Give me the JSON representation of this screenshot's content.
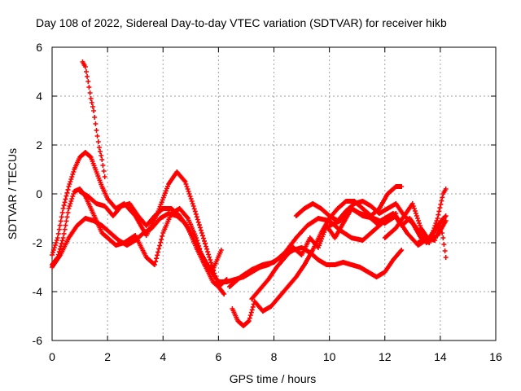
{
  "chart_data": {
    "type": "scatter",
    "title": "Day 108 of 2022, Sidereal Day-to-day VTEC variation (SDTVAR) for receiver hikb",
    "xlabel": "GPS time / hours",
    "ylabel": "SDTVAR / TECUs",
    "xlim": [
      0,
      16
    ],
    "ylim": [
      -6,
      6
    ],
    "xticks": [
      0,
      2,
      4,
      6,
      8,
      10,
      12,
      14,
      16
    ],
    "yticks": [
      -6,
      -4,
      -2,
      0,
      2,
      4,
      6
    ],
    "grid": true,
    "marker": "+",
    "color": "#ff0000",
    "series": [
      {
        "name": "track-1",
        "x": [
          0.0,
          0.2,
          0.4,
          0.6,
          0.8,
          1.0,
          1.2,
          1.4,
          1.6,
          1.8,
          2.0,
          2.3,
          2.6,
          3.0,
          3.4,
          3.8,
          4.2,
          4.5,
          4.8,
          5.1,
          5.4,
          5.7,
          6.0,
          6.2
        ],
        "values": [
          -2.5,
          -1.8,
          -0.6,
          0.3,
          1.0,
          1.5,
          1.7,
          1.5,
          0.9,
          0.3,
          -0.2,
          -0.6,
          -0.4,
          -0.9,
          -1.7,
          -0.8,
          0.4,
          0.9,
          0.5,
          -0.5,
          -1.6,
          -2.7,
          -3.8,
          -4.1
        ]
      },
      {
        "name": "track-2",
        "x": [
          1.1,
          1.2,
          1.3,
          1.4,
          1.5,
          1.6,
          1.7,
          1.8,
          1.9
        ],
        "values": [
          5.4,
          5.2,
          4.6,
          3.9,
          3.4,
          2.6,
          1.9,
          1.4,
          0.7
        ]
      },
      {
        "name": "track-3",
        "x": [
          0.0,
          0.2,
          0.4,
          0.6,
          0.8,
          1.0,
          1.2,
          1.4,
          1.6,
          1.8,
          2.0,
          2.3,
          2.6,
          3.0,
          3.4,
          3.7,
          4.0,
          4.3,
          4.6,
          4.9,
          5.2,
          5.5,
          5.8,
          6.0,
          6.3
        ],
        "values": [
          -2.9,
          -2.6,
          -1.8,
          -0.6,
          0.1,
          0.2,
          -0.1,
          -0.6,
          -1.1,
          -1.6,
          -1.8,
          -2.1,
          -2.0,
          -1.7,
          -2.6,
          -2.9,
          -1.6,
          -0.8,
          -0.6,
          -1.0,
          -1.8,
          -2.9,
          -3.6,
          -3.8,
          -3.5
        ]
      },
      {
        "name": "track-4",
        "x": [
          0.0,
          0.3,
          0.6,
          0.9,
          1.2,
          1.5,
          1.8,
          2.1,
          2.4,
          2.7,
          3.0,
          3.3,
          3.6,
          3.9,
          4.2,
          4.5,
          4.8,
          5.1,
          5.4,
          5.7,
          6.0,
          6.3,
          6.6,
          6.9,
          7.2,
          7.5,
          7.8,
          8.1,
          8.4,
          8.7,
          9.0,
          9.3,
          9.6,
          9.9,
          10.2,
          10.5,
          10.8,
          11.1,
          11.4,
          11.7,
          12.0,
          12.3,
          12.6
        ],
        "values": [
          -3.0,
          -2.5,
          -1.8,
          -1.3,
          -1.0,
          -1.1,
          -1.3,
          -1.6,
          -1.9,
          -2.1,
          -1.9,
          -1.6,
          -1.4,
          -1.0,
          -0.8,
          -0.9,
          -1.2,
          -1.8,
          -2.5,
          -3.1,
          -3.6,
          -3.6,
          -3.5,
          -3.4,
          -3.2,
          -3.0,
          -2.9,
          -2.7,
          -2.5,
          -2.3,
          -2.2,
          -2.4,
          -2.7,
          -2.9,
          -2.9,
          -2.8,
          -2.9,
          -3.0,
          -3.2,
          -3.4,
          -3.2,
          -2.7,
          -2.3
        ]
      },
      {
        "name": "track-5",
        "x": [
          1.0,
          1.3,
          1.6,
          1.9,
          2.2,
          2.5,
          2.8,
          3.1,
          3.4,
          3.7,
          4.0,
          4.3,
          4.6,
          4.9,
          5.2,
          5.5,
          5.8,
          6.1
        ],
        "values": [
          0.1,
          -0.1,
          -0.4,
          -0.5,
          -0.9,
          -0.5,
          -0.4,
          -0.9,
          -1.3,
          -0.9,
          -0.6,
          -0.6,
          -0.9,
          -1.4,
          -2.2,
          -2.9,
          -3.1,
          -2.3
        ]
      },
      {
        "name": "track-6",
        "x": [
          6.5,
          6.7,
          6.9,
          7.1,
          7.3,
          7.6,
          7.9,
          8.2,
          8.5,
          8.8,
          9.1,
          9.4,
          9.7,
          10.0,
          10.3,
          10.6,
          10.9,
          11.2,
          11.5,
          11.8,
          12.1,
          12.4,
          12.6
        ],
        "values": [
          -4.7,
          -5.2,
          -5.4,
          -5.2,
          -4.4,
          -4.8,
          -4.6,
          -4.2,
          -3.8,
          -3.4,
          -2.9,
          -2.3,
          -1.6,
          -1.0,
          -0.6,
          -0.3,
          -0.3,
          -0.6,
          -0.9,
          -0.6,
          0.0,
          0.3,
          0.3
        ]
      },
      {
        "name": "track-7",
        "x": [
          7.2,
          7.5,
          7.8,
          8.1,
          8.4,
          8.7,
          9.0,
          9.3,
          9.6,
          9.9,
          10.2,
          10.5,
          10.8,
          11.1,
          11.4,
          11.7,
          12.0,
          12.3,
          12.6,
          12.9,
          13.2,
          13.5,
          13.8,
          14.1
        ],
        "values": [
          -4.3,
          -3.9,
          -3.5,
          -3.0,
          -2.6,
          -2.2,
          -2.5,
          -1.8,
          -2.2,
          -1.3,
          -1.8,
          -1.2,
          -0.6,
          -0.8,
          -0.9,
          -1.2,
          -1.0,
          -0.8,
          -1.3,
          -1.0,
          -1.5,
          -2.0,
          -1.5,
          -1.0
        ]
      },
      {
        "name": "track-8",
        "x": [
          6.4,
          6.8,
          7.2,
          7.6,
          8.0,
          8.4,
          8.8,
          9.2,
          9.6,
          10.0,
          10.4,
          10.8,
          11.2,
          11.6,
          12.0,
          12.4
        ],
        "values": [
          -3.8,
          -3.4,
          -3.1,
          -2.9,
          -2.8,
          -2.4,
          -1.8,
          -1.3,
          -1.0,
          -1.1,
          -1.5,
          -1.8,
          -1.9,
          -1.5,
          -1.1,
          -0.8
        ]
      },
      {
        "name": "track-9",
        "x": [
          8.8,
          9.1,
          9.4,
          9.7,
          10.0,
          10.3,
          10.6,
          10.9,
          11.2,
          11.5,
          11.8,
          12.1,
          12.4,
          12.7,
          13.0,
          13.3,
          13.6,
          13.9,
          14.2
        ],
        "values": [
          -0.9,
          -0.6,
          -0.4,
          -0.6,
          -0.9,
          -1.1,
          -0.7,
          -0.4,
          -0.3,
          -0.5,
          -0.8,
          -0.6,
          -0.4,
          -0.9,
          -0.4,
          -1.4,
          -1.9,
          -1.7,
          -1.1
        ]
      },
      {
        "name": "track-10",
        "x": [
          10.0,
          10.4,
          10.8,
          11.2,
          11.6,
          12.0,
          12.4,
          12.8,
          13.2,
          13.6,
          13.9,
          14.2
        ],
        "values": [
          -1.3,
          -1.1,
          -0.6,
          -0.9,
          -1.0,
          -1.2,
          -0.9,
          -1.6,
          -2.1,
          -1.8,
          -1.3,
          -0.9
        ]
      },
      {
        "name": "track-11",
        "x": [
          12.0,
          12.4,
          12.7,
          13.0,
          13.3,
          13.6,
          13.9,
          14.1,
          14.2
        ],
        "values": [
          -1.8,
          -1.4,
          -0.9,
          -1.2,
          -1.8,
          -2.0,
          -1.0,
          0.0,
          0.2
        ]
      },
      {
        "name": "track-12",
        "x": [
          13.2,
          13.5,
          13.8,
          14.0,
          14.1,
          14.2
        ],
        "values": [
          -2.0,
          -1.8,
          -1.9,
          -1.2,
          -1.8,
          -2.6
        ]
      }
    ]
  }
}
